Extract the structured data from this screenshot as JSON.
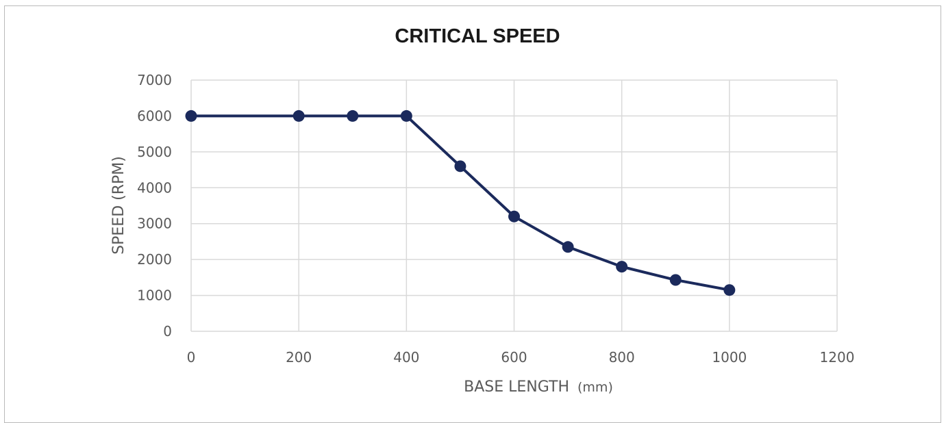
{
  "chart_data": {
    "type": "line",
    "title": "CRITICAL SPEED",
    "xlabel": "BASE LENGTH",
    "xlabel_unit": "(mm)",
    "ylabel": "SPEED (RPM)",
    "xlim": [
      0,
      1200
    ],
    "ylim": [
      0,
      7000
    ],
    "x_ticks": [
      "0",
      "200",
      "400",
      "600",
      "800",
      "1000",
      "1200"
    ],
    "y_ticks": [
      "0",
      "1000",
      "2000",
      "3000",
      "4000",
      "5000",
      "6000",
      "7000"
    ],
    "grid": true,
    "legend": "none",
    "series": [
      {
        "color": "#1b2a5c",
        "points": [
          {
            "x": 0,
            "y": 6000
          },
          {
            "x": 200,
            "y": 6000
          },
          {
            "x": 300,
            "y": 6000
          },
          {
            "x": 400,
            "y": 6000
          },
          {
            "x": 500,
            "y": 4600
          },
          {
            "x": 600,
            "y": 3200
          },
          {
            "x": 700,
            "y": 2350
          },
          {
            "x": 800,
            "y": 1800
          },
          {
            "x": 900,
            "y": 1430
          },
          {
            "x": 1000,
            "y": 1150
          }
        ]
      }
    ]
  }
}
